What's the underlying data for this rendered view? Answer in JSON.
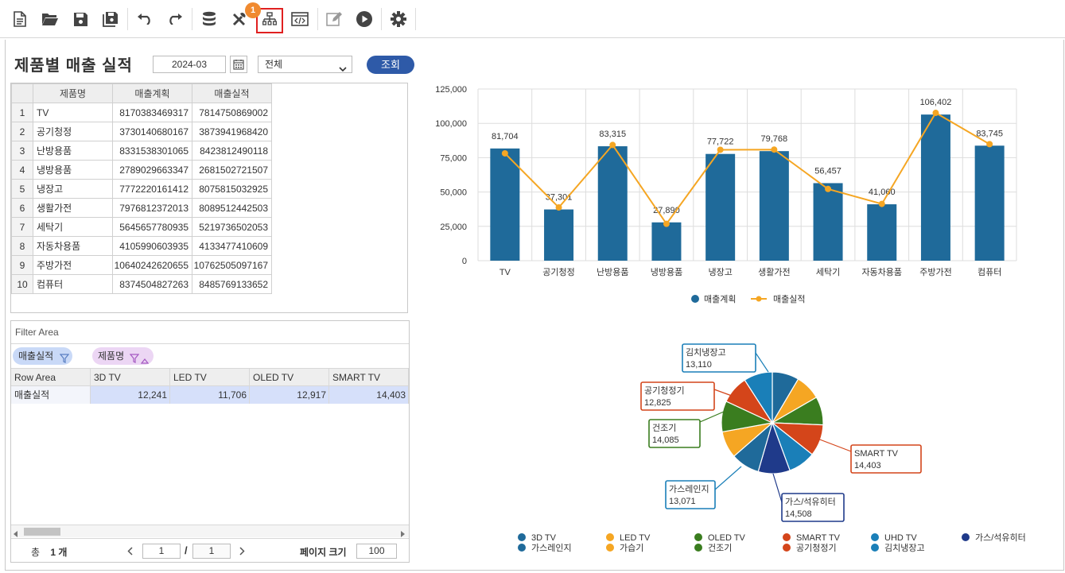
{
  "toolbar": {
    "badge": "1",
    "icons": [
      "new-document-icon",
      "open-folder-icon",
      "save-icon",
      "save-as-icon",
      "undo-icon",
      "redo-icon",
      "database-icon",
      "tools-icon",
      "hierarchy-icon",
      "script-editor-icon",
      "edit-icon",
      "run-icon",
      "settings-icon"
    ]
  },
  "header": {
    "title": "제품별 매출 실적",
    "date_value": "2024-03",
    "select_value": "전체",
    "search_label": "조회"
  },
  "grid": {
    "columns": [
      "제품명",
      "매출계획",
      "매출실적"
    ],
    "rows": [
      {
        "no": "1",
        "name": "TV",
        "plan": "8170383469317",
        "actual": "7814750869002"
      },
      {
        "no": "2",
        "name": "공기청정",
        "plan": "3730140680167",
        "actual": "3873941968420"
      },
      {
        "no": "3",
        "name": "난방용품",
        "plan": "8331538301065",
        "actual": "8423812490118"
      },
      {
        "no": "4",
        "name": "냉방용품",
        "plan": "2789029663347",
        "actual": "2681502721507"
      },
      {
        "no": "5",
        "name": "냉장고",
        "plan": "7772220161412",
        "actual": "8075815032925"
      },
      {
        "no": "6",
        "name": "생활가전",
        "plan": "7976812372013",
        "actual": "8089512442503"
      },
      {
        "no": "7",
        "name": "세탁기",
        "plan": "5645657780935",
        "actual": "5219736502053"
      },
      {
        "no": "8",
        "name": "자동차용품",
        "plan": "4105990603935",
        "actual": "4133477410609"
      },
      {
        "no": "9",
        "name": "주방가전",
        "plan": "10640242620655",
        "actual": "10762505097167"
      },
      {
        "no": "10",
        "name": "컴퓨터",
        "plan": "8374504827263",
        "actual": "8485769133652"
      }
    ]
  },
  "pivot": {
    "filter_area_label": "Filter Area",
    "chip_value": "매출실적",
    "chip_product": "제품명",
    "row_area_label": "Row Area",
    "columns": [
      "3D TV",
      "LED TV",
      "OLED TV",
      "SMART TV"
    ],
    "row_label": "매출실적",
    "row_values": [
      "12,241",
      "11,706",
      "12,917",
      "14,403"
    ],
    "pager": {
      "total_prefix": "총",
      "total_count": "1 개",
      "page": "1",
      "slash": "/",
      "page_total": "1",
      "page_size_label": "페이지 크기",
      "page_size": "100"
    }
  },
  "chart_data": [
    {
      "type": "bar",
      "categories": [
        "TV",
        "공기청정",
        "난방용품",
        "냉방용품",
        "냉장고",
        "생활가전",
        "세탁기",
        "자동차용품",
        "주방가전",
        "컴퓨터"
      ],
      "series": [
        {
          "name": "매출계획",
          "type": "bar",
          "color": "#1f6a9a",
          "values": [
            81704,
            37301,
            83315,
            27890,
            77722,
            79768,
            56457,
            41060,
            106402,
            83745
          ]
        },
        {
          "name": "매출실적",
          "type": "line",
          "color": "#f5a623",
          "values": [
            78147,
            38739,
            84238,
            26815,
            80758,
            80895,
            52197,
            41335,
            107625,
            84858
          ]
        }
      ],
      "data_labels": [
        "81,704",
        "37,301",
        "83,315",
        "27,890",
        "77,722",
        "79,768",
        "56,457",
        "41,060",
        "106,402",
        "83,745"
      ],
      "yticks": [
        "125,000",
        "100,000",
        "75,000",
        "50,000",
        "25,000",
        "0"
      ],
      "ylim": [
        0,
        125000
      ],
      "grid": true,
      "legend": "bottom"
    },
    {
      "type": "pie",
      "slices": [
        {
          "name": "3D TV",
          "value": 12241,
          "color": "#1f6a9a"
        },
        {
          "name": "LED TV",
          "value": 11706,
          "color": "#f5a623"
        },
        {
          "name": "OLED TV",
          "value": 12917,
          "color": "#3a7d1f"
        },
        {
          "name": "SMART TV",
          "value": 14403,
          "color": "#d4451a"
        },
        {
          "name": "UHD TV",
          "value": 12500,
          "color": "#1a7fb8"
        },
        {
          "name": "가스/석유히터",
          "value": 14508,
          "color": "#1f3a8a"
        },
        {
          "name": "가스레인지",
          "value": 13071,
          "color": "#1f6a9a"
        },
        {
          "name": "가습기",
          "value": 12300,
          "color": "#f5a623"
        },
        {
          "name": "건조기",
          "value": 14085,
          "color": "#3a7d1f"
        },
        {
          "name": "공기청정기",
          "value": 12825,
          "color": "#d4451a"
        },
        {
          "name": "김치냉장고",
          "value": 13110,
          "color": "#1a7fb8"
        }
      ],
      "callouts": [
        {
          "name": "김치냉장고",
          "value": "13,110"
        },
        {
          "name": "공기청정기",
          "value": "12,825"
        },
        {
          "name": "건조기",
          "value": "14,085"
        },
        {
          "name": "SMART TV",
          "value": "14,403"
        },
        {
          "name": "가스레인지",
          "value": "13,071"
        },
        {
          "name": "가스/석유히터",
          "value": "14,508"
        }
      ],
      "legend": "bottom"
    }
  ]
}
